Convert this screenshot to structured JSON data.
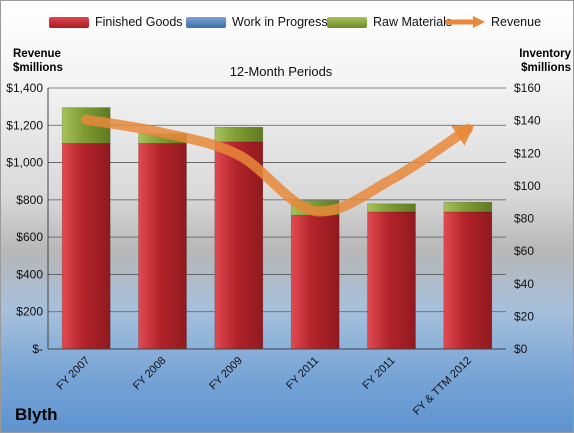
{
  "company": "Blyth",
  "legend": [
    {
      "label": "Finished Goods",
      "color": "#c9252c"
    },
    {
      "label": "Work in Progress",
      "color": "#4f81bd"
    },
    {
      "label": "Raw Materials",
      "color": "#8aa73a"
    },
    {
      "label": "Revenue",
      "color": "#e8883a"
    }
  ],
  "chart_data": {
    "type": "bar",
    "stacked": true,
    "title": "12-Month Periods",
    "ylabel_left": "Revenue $millions",
    "ylabel_right": "Inventory $millions",
    "categories": [
      "FY 2007",
      "FY 2008",
      "FY 2009",
      "FY 2011",
      "FY 2011",
      "FY & TTM 2012"
    ],
    "series": [
      {
        "name": "Finished Goods",
        "axis": "right",
        "color": "#c9252c",
        "values": [
          126,
          126,
          127,
          82,
          84,
          84
        ]
      },
      {
        "name": "Work in Progress",
        "axis": "right",
        "color": "#4f81bd",
        "values": [
          0,
          0,
          0,
          0,
          0,
          0
        ]
      },
      {
        "name": "Raw Materials",
        "axis": "right",
        "color": "#8aa73a",
        "values": [
          22,
          6,
          9,
          9,
          5,
          6
        ]
      },
      {
        "name": "Revenue",
        "type": "line",
        "axis": "left",
        "color": "#e8883a",
        "values": [
          1230,
          1160,
          1040,
          740,
          910,
          1180
        ]
      }
    ],
    "ylim_left": [
      0,
      1400
    ],
    "ylim_right": [
      0,
      160
    ],
    "yticks_left": [
      "$-",
      "$200",
      "$400",
      "$600",
      "$800",
      "$1,000",
      "$1,200",
      "$1,400"
    ],
    "yticks_right": [
      "$0",
      "$20",
      "$40",
      "$60",
      "$80",
      "$100",
      "$120",
      "$140",
      "$160"
    ],
    "grid": true,
    "legend_position": "top"
  }
}
